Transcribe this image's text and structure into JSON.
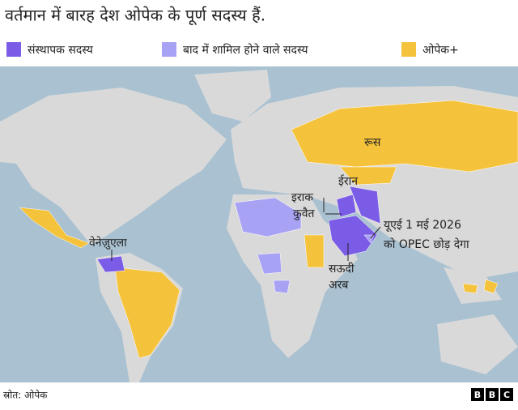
{
  "title": "वर्तमान में बारह देश ओपेक के पूर्ण सदस्य हैं.",
  "legend": [
    {
      "label": "संस्थापक सदस्य",
      "color": "#7b5ce6"
    },
    {
      "label": "बाद में शामिल होने वाले सदस्य",
      "color": "#a8a2f4"
    },
    {
      "label": "ओपेक+",
      "color": "#f5c33b"
    }
  ],
  "labels": {
    "russia": "रूस",
    "iran": "ईरान",
    "iraq": "इराक",
    "kuwait": "कुवैत",
    "uae": [
      "यूएई 1 मई 2026",
      "को OPEC छोड़ देगा"
    ],
    "venezuela": "वेनेज़ुएला",
    "saudi": [
      "सऊदी",
      "अरब"
    ]
  },
  "source": "स्रोत: ओपेक",
  "logo": [
    "B",
    "B",
    "C"
  ]
}
